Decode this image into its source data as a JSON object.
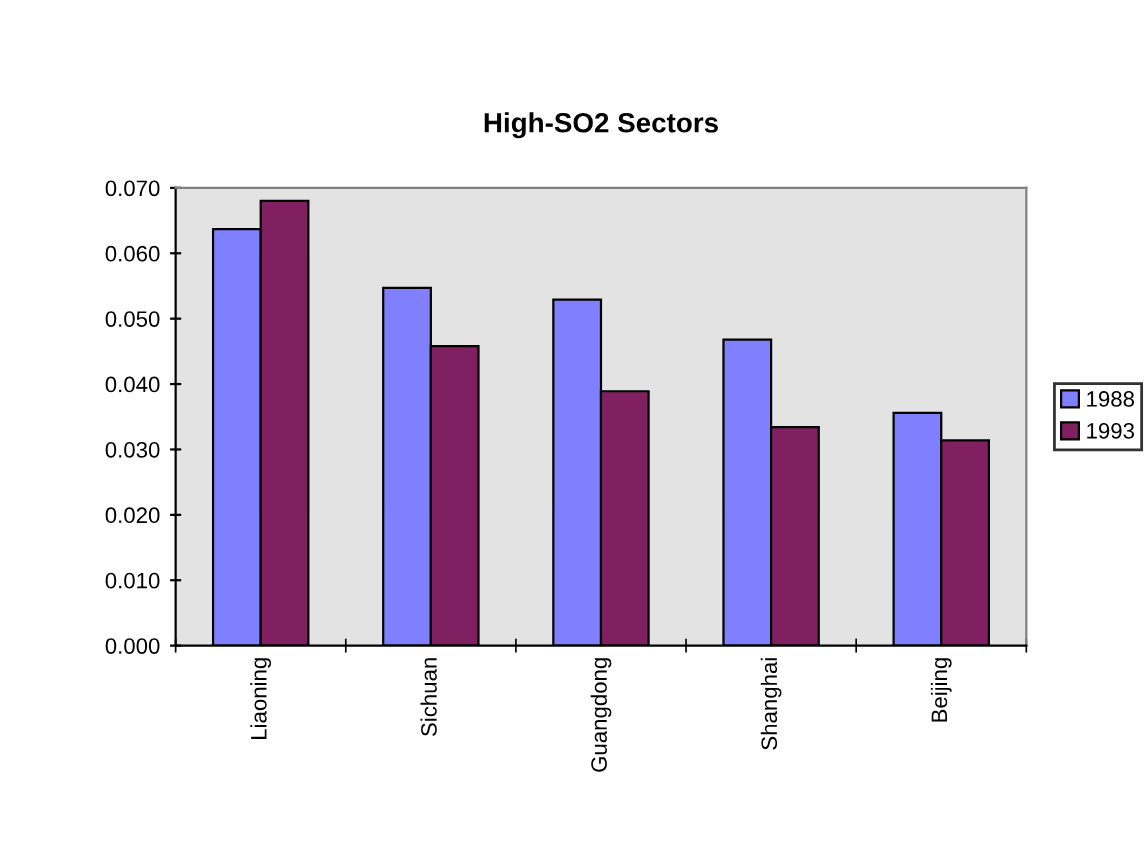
{
  "chart_data": {
    "type": "bar",
    "title": "High-SO2 Sectors",
    "categories": [
      "Liaoning",
      "Sichuan",
      "Guangdong",
      "Shanghai",
      "Beijing"
    ],
    "series": [
      {
        "name": "1988",
        "color": "#8080ff",
        "values": [
          0.0637,
          0.0547,
          0.0529,
          0.0468,
          0.0356
        ]
      },
      {
        "name": "1993",
        "color": "#802060",
        "values": [
          0.068,
          0.0458,
          0.0389,
          0.0334,
          0.0314
        ]
      }
    ],
    "ylim": [
      0,
      0.07
    ],
    "yticks": [
      {
        "value": 0,
        "label": "0.000"
      },
      {
        "value": 0.01,
        "label": "0.010"
      },
      {
        "value": 0.02,
        "label": "0.020"
      },
      {
        "value": 0.03,
        "label": "0.030"
      },
      {
        "value": 0.04,
        "label": "0.040"
      },
      {
        "value": 0.05,
        "label": "0.050"
      },
      {
        "value": 0.06,
        "label": "0.060"
      },
      {
        "value": 0.07,
        "label": "0.070"
      }
    ],
    "grid": false,
    "legend": "right"
  }
}
